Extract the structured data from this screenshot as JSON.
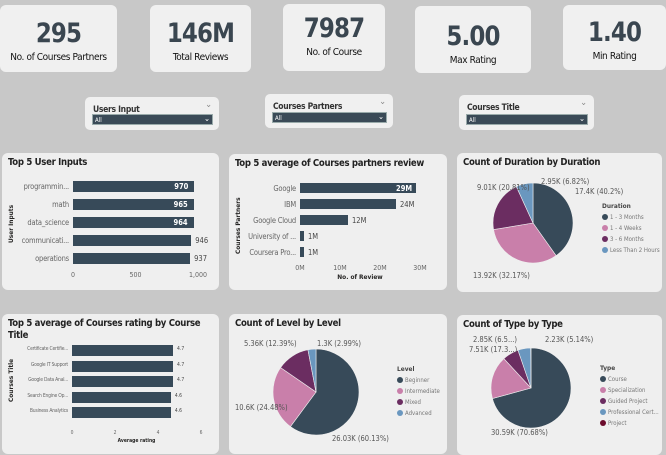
{
  "kpis": [
    {
      "value": "295",
      "label": "No. of Courses Partners"
    },
    {
      "value": "146M",
      "label": "Total Reviews"
    },
    {
      "value": "7987",
      "label": "No. of Course"
    },
    {
      "value": "5.00",
      "label": "Max Rating"
    },
    {
      "value": "1.40",
      "label": "Min Rating"
    }
  ],
  "slicers": [
    {
      "title": "Users Input",
      "value": "All"
    },
    {
      "title": "Courses Partners",
      "value": "All"
    },
    {
      "title": "Courses Title",
      "value": "All"
    }
  ],
  "colors": {
    "dark": "#374a59",
    "pink": "#c97faa",
    "purple": "#6b2d61",
    "blue": "#6a97bf",
    "maroon": "#6b0c2c"
  },
  "chart_data": [
    {
      "type": "bar",
      "orientation": "horizontal",
      "title": "Top 5 User Inputs",
      "ylabel": "User Inputs",
      "xlabel": "",
      "categories": [
        "programmin...",
        "math",
        "data_science",
        "communicati...",
        "operations"
      ],
      "values": [
        970,
        965,
        964,
        946,
        937
      ],
      "labels": [
        "970",
        "965",
        "964",
        "946",
        "937"
      ],
      "xlim": [
        0,
        1000
      ],
      "ticks": [
        "0",
        "500",
        "1,000"
      ],
      "tickvals": [
        0,
        500,
        1000
      ]
    },
    {
      "type": "bar",
      "orientation": "horizontal",
      "title": "Top 5 average of Courses partners review",
      "ylabel": "Courses Partners",
      "xlabel": "No. of Review",
      "categories": [
        "Google",
        "IBM",
        "Google Cloud",
        "University of ...",
        "Coursera Pro..."
      ],
      "values": [
        29,
        24,
        12,
        1,
        1
      ],
      "labels": [
        "29M",
        "24M",
        "12M",
        "1M",
        "1M"
      ],
      "xlim": [
        0,
        30
      ],
      "ticks": [
        "0M",
        "10M",
        "20M",
        "30M"
      ],
      "tickvals": [
        0,
        10,
        20,
        30
      ]
    },
    {
      "type": "pie",
      "title": "Count of Duration by Duration",
      "legend_title": "Duration",
      "legend_position": "right",
      "slices": [
        {
          "name": "1 - 3 Months",
          "value": 17.4,
          "label": "17.4K (40.2%)",
          "color": "#374a59"
        },
        {
          "name": "1 - 4 Weeks",
          "value": 13.92,
          "label": "13.92K (32.17%)",
          "color": "#c97faa"
        },
        {
          "name": "3 - 6 Months",
          "value": 9.01,
          "label": "9.01K (20.81%)",
          "color": "#6b2d61"
        },
        {
          "name": "Less Than 2 Hours",
          "value": 2.95,
          "label": "2.95K (6.82%)",
          "color": "#6a97bf"
        }
      ]
    },
    {
      "type": "bar",
      "orientation": "horizontal",
      "title": "Top 5 average of Courses rating by Course Title",
      "ylabel": "Courses Title",
      "xlabel": "Average rating",
      "categories": [
        "Certificate Certifie...",
        "Google IT Support",
        "Google Data Anal...",
        "Search Engine Op...",
        "Business Analytics"
      ],
      "values": [
        4.7,
        4.7,
        4.7,
        4.6,
        4.6
      ],
      "labels": [
        "4.7",
        "4.7",
        "4.7",
        "4.6",
        "4.6"
      ],
      "xlim": [
        0,
        6
      ],
      "ticks": [
        "0",
        "2",
        "4",
        "6"
      ],
      "tickvals": [
        0,
        2,
        4,
        6
      ]
    },
    {
      "type": "pie",
      "title": "Count of Level by Level",
      "legend_title": "Level",
      "legend_position": "right",
      "slices": [
        {
          "name": "Beginner",
          "value": 26.03,
          "label": "26.03K (60.13%)",
          "color": "#374a59"
        },
        {
          "name": "Intermediate",
          "value": 10.6,
          "label": "10.6K (24.48%)",
          "color": "#c97faa"
        },
        {
          "name": "Mixed",
          "value": 5.36,
          "label": "5.36K (12.39%)",
          "color": "#6b2d61"
        },
        {
          "name": "Advanced",
          "value": 1.3,
          "label": "1.3K (2.99%)",
          "color": "#6a97bf"
        }
      ]
    },
    {
      "type": "pie",
      "title": "Count of Type by Type",
      "legend_title": "Type",
      "legend_position": "right",
      "slices": [
        {
          "name": "Course",
          "value": 30.59,
          "label": "30.59K (70.68%)",
          "color": "#374a59"
        },
        {
          "name": "Specialization",
          "value": 7.51,
          "label": "7.51K (17.3...)",
          "color": "#c97faa"
        },
        {
          "name": "Guided Project",
          "value": 2.85,
          "label": "2.85K (6.5...)",
          "color": "#6b2d61"
        },
        {
          "name": "Professional Cert...",
          "value": 2.23,
          "label": "2.23K (5.14%)",
          "color": "#6a97bf"
        },
        {
          "name": "Project",
          "value": 0.05,
          "label": "",
          "color": "#6b0c2c"
        }
      ]
    }
  ]
}
